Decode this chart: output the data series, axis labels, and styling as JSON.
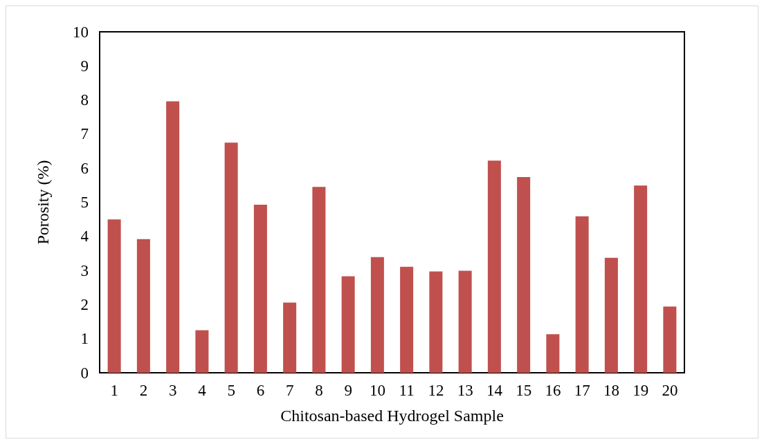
{
  "chart_data": {
    "type": "bar",
    "xlabel": "Chitosan-based Hydrogel Sample",
    "ylabel": "Porosity (%)",
    "categories": [
      "1",
      "2",
      "3",
      "4",
      "5",
      "6",
      "7",
      "8",
      "9",
      "10",
      "11",
      "12",
      "13",
      "14",
      "15",
      "16",
      "17",
      "18",
      "19",
      "20"
    ],
    "values": [
      4.5,
      3.92,
      7.96,
      1.25,
      6.75,
      4.93,
      2.06,
      5.45,
      2.83,
      3.39,
      3.11,
      2.97,
      2.99,
      6.22,
      5.74,
      1.13,
      4.59,
      3.37,
      5.49,
      1.94
    ],
    "color": "#c0504d",
    "ylim": [
      0,
      10
    ],
    "yticks": [
      0,
      1,
      2,
      3,
      4,
      5,
      6,
      7,
      8,
      9,
      10
    ],
    "grid": false
  }
}
